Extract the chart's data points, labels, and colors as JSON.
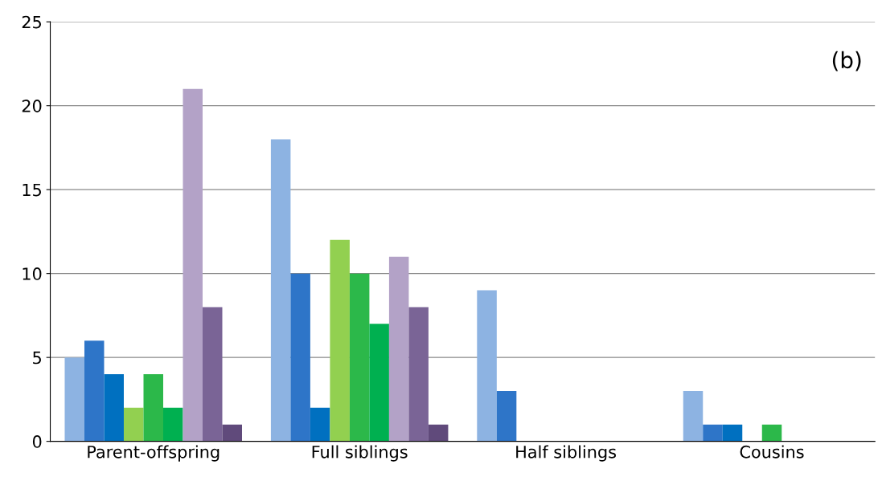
{
  "chart_data": {
    "type": "bar",
    "categories": [
      "Parent-offspring",
      "Full siblings",
      "Half siblings",
      "Cousins"
    ],
    "series": [
      {
        "color": "#8db3e2",
        "values": [
          5,
          18,
          9,
          3
        ]
      },
      {
        "color": "#2e75c8",
        "values": [
          6,
          10,
          3,
          1
        ]
      },
      {
        "color": "#0070c0",
        "values": [
          4,
          2,
          0,
          1
        ]
      },
      {
        "color": "#92d050",
        "values": [
          2,
          12,
          0,
          0
        ]
      },
      {
        "color": "#2cb84a",
        "values": [
          4,
          10,
          0,
          1
        ]
      },
      {
        "color": "#00b050",
        "values": [
          2,
          7,
          0,
          0
        ]
      },
      {
        "color": "#b3a2c7",
        "values": [
          21,
          11,
          0,
          0
        ]
      },
      {
        "color": "#7a6496",
        "values": [
          8,
          8,
          0,
          0
        ]
      },
      {
        "color": "#604a7b",
        "values": [
          1,
          1,
          0,
          0
        ]
      }
    ],
    "ylim": [
      0,
      25
    ],
    "yticks": [
      0,
      5,
      10,
      15,
      20,
      25
    ],
    "grid": "y",
    "legend": false,
    "annotations": [
      "(b)"
    ]
  }
}
